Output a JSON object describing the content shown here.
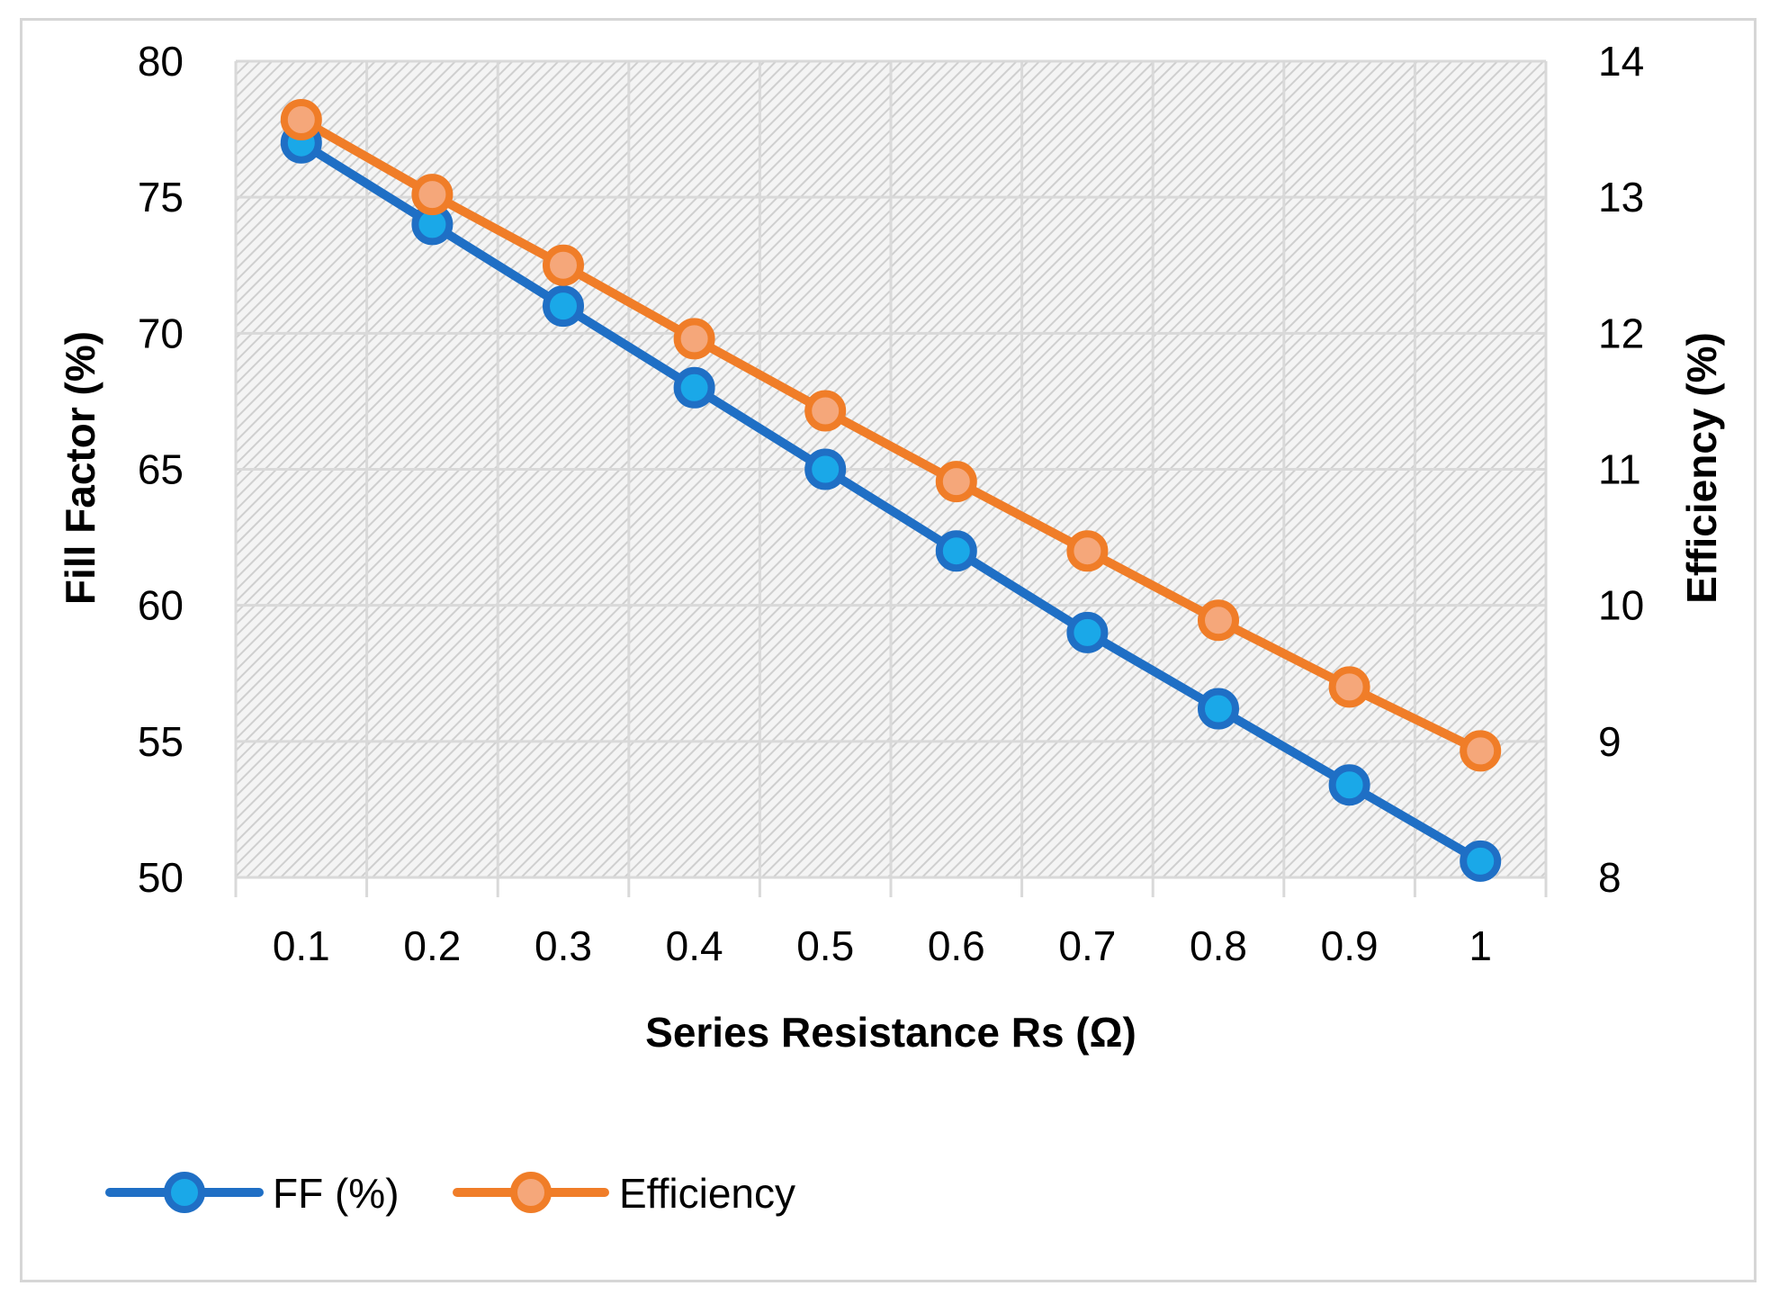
{
  "chart_data": {
    "type": "line",
    "title": "",
    "xlabel": "Series Resistance Rs (Ω)",
    "ylabel_left": "Fill Factor (%)",
    "ylabel_right": "Efficiency (%)",
    "categories": [
      "0.1",
      "0.2",
      "0.3",
      "0.4",
      "0.5",
      "0.6",
      "0.7",
      "0.8",
      "0.9",
      "1"
    ],
    "ylim_left": [
      50,
      80
    ],
    "ylim_right": [
      8,
      14
    ],
    "yticks_left": [
      "50",
      "55",
      "60",
      "65",
      "70",
      "75",
      "80"
    ],
    "yticks_right": [
      "8",
      "9",
      "10",
      "11",
      "12",
      "13",
      "14"
    ],
    "grid": true,
    "legend_position": "bottom-left",
    "series": [
      {
        "name": "FF (%)",
        "axis": "left",
        "color": "#1f6fc5",
        "marker_fill": "#1aa8e8",
        "values": [
          77,
          74,
          71,
          68,
          65,
          62,
          59,
          56.2,
          53.4,
          50.6
        ]
      },
      {
        "name": "Efficiency",
        "axis": "right",
        "color": "#f07d28",
        "marker_fill": "#f5a77a",
        "values": [
          13.57,
          13.02,
          12.5,
          11.96,
          11.43,
          10.91,
          10.4,
          9.89,
          9.4,
          8.93
        ]
      }
    ]
  }
}
